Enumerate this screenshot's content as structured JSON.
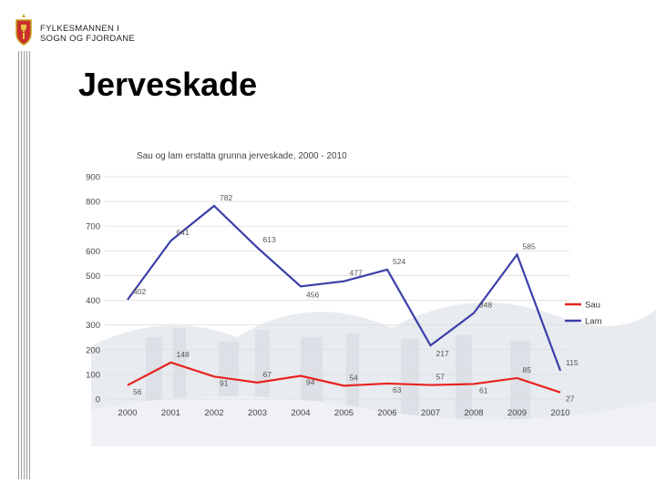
{
  "header": {
    "org_line1": "FYLKESMANNEN I",
    "org_line2": "SOGN OG FJORDANE"
  },
  "slide": {
    "title": "Jerveskade"
  },
  "colors": {
    "sau": "#e8231f",
    "lam": "#3b3fa8",
    "axis_text": "#444444",
    "grid": "#dddddd"
  },
  "icons": {
    "crest": "coat-of-arms-icon"
  },
  "chart_data": {
    "type": "line",
    "title": "Sau og lam erstatta grunna jerveskade, 2000 - 2010",
    "categories": [
      "2000",
      "2001",
      "2002",
      "2003",
      "2004",
      "2005",
      "2006",
      "2007",
      "2008",
      "2009",
      "2010"
    ],
    "ylim": [
      0,
      900
    ],
    "yticks": [
      0,
      100,
      200,
      300,
      400,
      500,
      600,
      700,
      800,
      900
    ],
    "grid": true,
    "legend": "right",
    "series": [
      {
        "name": "Sau",
        "values": [
          56,
          148,
          91,
          67,
          94,
          54,
          63,
          57,
          61,
          85,
          27
        ]
      },
      {
        "name": "Lam",
        "values": [
          402,
          641,
          782,
          613,
          456,
          477,
          524,
          217,
          348,
          585,
          115
        ]
      }
    ]
  }
}
